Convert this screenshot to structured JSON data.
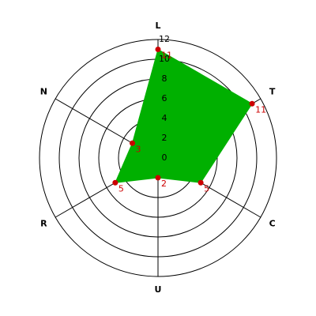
{
  "chart_data": {
    "type": "radar",
    "categories": [
      "L",
      "T",
      "C",
      "U",
      "R",
      "N"
    ],
    "values": [
      11,
      11,
      5,
      2,
      5,
      3
    ],
    "color": "#00b000",
    "marker_color": "#cc0000",
    "ylim": [
      0,
      12
    ],
    "yticks": [
      0,
      2,
      4,
      6,
      8,
      10,
      12
    ],
    "grid": true
  }
}
